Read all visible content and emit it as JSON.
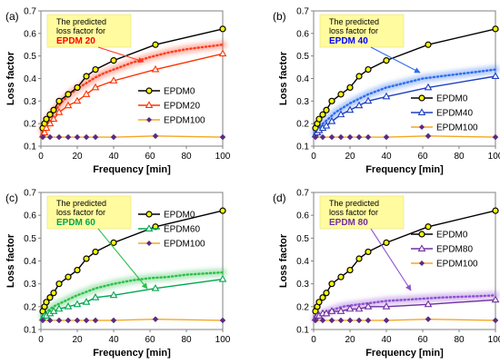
{
  "chart_data": [
    {
      "type": "line",
      "panel_label": "(a)",
      "xlabel": "Frequency [min]",
      "ylabel": "Loss factor",
      "xlim": [
        0,
        100
      ],
      "ylim": [
        0.1,
        0.7
      ],
      "x_ticks": [
        0,
        20,
        40,
        60,
        80,
        100
      ],
      "y_ticks": [
        0.1,
        0.2,
        0.3,
        0.4,
        0.5,
        0.6,
        0.7
      ],
      "annotation": {
        "line1": "The predicted",
        "line2": "loss factor for",
        "highlight": "EPDM 20",
        "highlight_color": "#ff0000"
      },
      "legend_position": "center-right",
      "predicted": {
        "color": "#ff3b1f",
        "x": [
          1,
          3,
          5,
          8,
          12,
          16,
          20,
          25,
          30,
          35,
          40,
          50,
          60,
          70,
          80,
          90,
          100
        ],
        "y": [
          0.17,
          0.2,
          0.23,
          0.26,
          0.3,
          0.33,
          0.355,
          0.38,
          0.405,
          0.425,
          0.44,
          0.47,
          0.495,
          0.515,
          0.53,
          0.54,
          0.55
        ]
      },
      "series": [
        {
          "name": "EPDM0",
          "color": "#000000",
          "marker": "circle",
          "marker_fill": "#ffff00",
          "x": [
            1,
            2,
            3,
            5,
            7,
            10,
            15,
            20,
            25,
            30,
            40,
            63,
            100
          ],
          "y": [
            0.18,
            0.2,
            0.22,
            0.24,
            0.26,
            0.3,
            0.33,
            0.36,
            0.41,
            0.44,
            0.48,
            0.55,
            0.62
          ]
        },
        {
          "name": "EPDM20",
          "color": "#ff3300",
          "marker": "triangle",
          "marker_fill": "#ffffff",
          "x": [
            1,
            2,
            3,
            5,
            7,
            10,
            15,
            20,
            25,
            30,
            40,
            63,
            100
          ],
          "y": [
            0.15,
            0.16,
            0.18,
            0.2,
            0.22,
            0.25,
            0.28,
            0.3,
            0.33,
            0.36,
            0.39,
            0.44,
            0.51
          ]
        },
        {
          "name": "EPDM100",
          "color": "#f5a623",
          "marker": "diamond",
          "marker_fill": "#5a2a82",
          "x": [
            1,
            5,
            10,
            15,
            20,
            25,
            30,
            40,
            63,
            100
          ],
          "y": [
            0.14,
            0.14,
            0.14,
            0.14,
            0.14,
            0.14,
            0.14,
            0.14,
            0.145,
            0.14
          ]
        }
      ]
    },
    {
      "type": "line",
      "panel_label": "(b)",
      "xlabel": "Frequency [min]",
      "ylabel": "Loss factor",
      "xlim": [
        0,
        100
      ],
      "ylim": [
        0.1,
        0.7
      ],
      "x_ticks": [
        0,
        20,
        40,
        60,
        80,
        100
      ],
      "y_ticks": [
        0.1,
        0.2,
        0.3,
        0.4,
        0.5,
        0.6,
        0.7
      ],
      "annotation": {
        "line1": "The predicted",
        "line2": "loss factor for",
        "highlight": "EPDM 40",
        "highlight_color": "#0000ff"
      },
      "legend_position": "center-right",
      "predicted": {
        "color": "#2e6cf0",
        "x": [
          1,
          3,
          5,
          8,
          12,
          16,
          20,
          25,
          30,
          35,
          40,
          50,
          60,
          70,
          80,
          90,
          100
        ],
        "y": [
          0.16,
          0.18,
          0.2,
          0.22,
          0.25,
          0.27,
          0.29,
          0.31,
          0.33,
          0.345,
          0.36,
          0.38,
          0.4,
          0.41,
          0.42,
          0.43,
          0.44
        ]
      },
      "series": [
        {
          "name": "EPDM0",
          "color": "#000000",
          "marker": "circle",
          "marker_fill": "#ffff00",
          "x": [
            1,
            2,
            3,
            5,
            7,
            10,
            15,
            20,
            25,
            30,
            40,
            63,
            100
          ],
          "y": [
            0.18,
            0.2,
            0.22,
            0.24,
            0.26,
            0.3,
            0.33,
            0.36,
            0.41,
            0.44,
            0.48,
            0.55,
            0.62
          ]
        },
        {
          "name": "EPDM40",
          "color": "#1f3fbf",
          "marker": "triangle",
          "marker_fill": "#ffffff",
          "x": [
            1,
            2,
            3,
            5,
            7,
            10,
            15,
            20,
            25,
            30,
            40,
            63,
            100
          ],
          "y": [
            0.15,
            0.16,
            0.17,
            0.18,
            0.19,
            0.21,
            0.24,
            0.26,
            0.28,
            0.3,
            0.32,
            0.36,
            0.41
          ]
        },
        {
          "name": "EPDM100",
          "color": "#f5a623",
          "marker": "diamond",
          "marker_fill": "#5a2a82",
          "x": [
            1,
            5,
            10,
            15,
            20,
            25,
            30,
            40,
            63,
            100
          ],
          "y": [
            0.14,
            0.14,
            0.14,
            0.14,
            0.14,
            0.14,
            0.14,
            0.14,
            0.145,
            0.14
          ]
        }
      ]
    },
    {
      "type": "line",
      "panel_label": "(c)",
      "xlabel": "Frequency [min]",
      "ylabel": "Loss factor",
      "xlim": [
        0,
        100
      ],
      "ylim": [
        0.1,
        0.7
      ],
      "x_ticks": [
        0,
        20,
        40,
        60,
        80,
        100
      ],
      "y_ticks": [
        0.1,
        0.2,
        0.3,
        0.4,
        0.5,
        0.6,
        0.7
      ],
      "annotation": {
        "line1": "The predicted",
        "line2": "loss factor for",
        "highlight": "EPDM 60",
        "highlight_color": "#00a651"
      },
      "legend_position": "top-right",
      "predicted": {
        "color": "#2dbf4a",
        "x": [
          1,
          3,
          5,
          8,
          12,
          16,
          20,
          25,
          30,
          35,
          40,
          50,
          60,
          70,
          80,
          90,
          100
        ],
        "y": [
          0.16,
          0.175,
          0.19,
          0.205,
          0.22,
          0.235,
          0.25,
          0.265,
          0.28,
          0.29,
          0.3,
          0.315,
          0.325,
          0.33,
          0.34,
          0.345,
          0.35
        ]
      },
      "series": [
        {
          "name": "EPDM0",
          "color": "#000000",
          "marker": "circle",
          "marker_fill": "#ffff00",
          "x": [
            1,
            2,
            3,
            5,
            7,
            10,
            15,
            20,
            25,
            30,
            40,
            63,
            100
          ],
          "y": [
            0.18,
            0.2,
            0.22,
            0.24,
            0.26,
            0.3,
            0.33,
            0.36,
            0.41,
            0.44,
            0.48,
            0.55,
            0.62
          ]
        },
        {
          "name": "EPDM60",
          "color": "#00a651",
          "marker": "triangle",
          "marker_fill": "#ffffff",
          "x": [
            1,
            2,
            3,
            5,
            7,
            10,
            15,
            20,
            25,
            30,
            40,
            63,
            100
          ],
          "y": [
            0.15,
            0.16,
            0.16,
            0.17,
            0.18,
            0.19,
            0.2,
            0.21,
            0.22,
            0.24,
            0.25,
            0.28,
            0.32
          ]
        },
        {
          "name": "EPDM100",
          "color": "#f5a623",
          "marker": "diamond",
          "marker_fill": "#5a2a82",
          "x": [
            1,
            5,
            10,
            15,
            20,
            25,
            30,
            40,
            63,
            100
          ],
          "y": [
            0.14,
            0.14,
            0.14,
            0.14,
            0.14,
            0.14,
            0.14,
            0.14,
            0.145,
            0.14
          ]
        }
      ]
    },
    {
      "type": "line",
      "panel_label": "(d)",
      "xlabel": "Frequency [min]",
      "ylabel": "Loss factor",
      "xlim": [
        0,
        100
      ],
      "ylim": [
        0.1,
        0.7
      ],
      "x_ticks": [
        0,
        20,
        40,
        60,
        80,
        100
      ],
      "y_ticks": [
        0.1,
        0.2,
        0.3,
        0.4,
        0.5,
        0.6,
        0.7
      ],
      "annotation": {
        "line1": "The predicted",
        "line2": "loss factor for",
        "highlight": "EPDM 80",
        "highlight_color": "#7030a0"
      },
      "legend_position": "center-right",
      "predicted": {
        "color": "#8e4fd0",
        "x": [
          1,
          3,
          5,
          8,
          12,
          16,
          20,
          25,
          30,
          35,
          40,
          50,
          60,
          70,
          80,
          90,
          100
        ],
        "y": [
          0.15,
          0.16,
          0.17,
          0.18,
          0.19,
          0.2,
          0.205,
          0.21,
          0.215,
          0.22,
          0.225,
          0.23,
          0.235,
          0.24,
          0.243,
          0.246,
          0.25
        ]
      },
      "series": [
        {
          "name": "EPDM0",
          "color": "#000000",
          "marker": "circle",
          "marker_fill": "#ffff00",
          "x": [
            1,
            2,
            3,
            5,
            7,
            10,
            15,
            20,
            25,
            30,
            40,
            63,
            100
          ],
          "y": [
            0.18,
            0.2,
            0.22,
            0.24,
            0.26,
            0.3,
            0.33,
            0.36,
            0.41,
            0.44,
            0.48,
            0.55,
            0.62
          ]
        },
        {
          "name": "EPDM80",
          "color": "#7030a0",
          "marker": "triangle",
          "marker_fill": "#ffffff",
          "x": [
            1,
            2,
            3,
            5,
            7,
            10,
            15,
            20,
            25,
            30,
            40,
            63,
            100
          ],
          "y": [
            0.15,
            0.16,
            0.16,
            0.17,
            0.17,
            0.18,
            0.18,
            0.19,
            0.19,
            0.2,
            0.2,
            0.21,
            0.23
          ]
        },
        {
          "name": "EPDM100",
          "color": "#f5a623",
          "marker": "diamond",
          "marker_fill": "#5a2a82",
          "x": [
            1,
            5,
            10,
            15,
            20,
            25,
            30,
            40,
            63,
            100
          ],
          "y": [
            0.14,
            0.14,
            0.14,
            0.14,
            0.14,
            0.14,
            0.14,
            0.14,
            0.145,
            0.14
          ]
        }
      ]
    }
  ]
}
